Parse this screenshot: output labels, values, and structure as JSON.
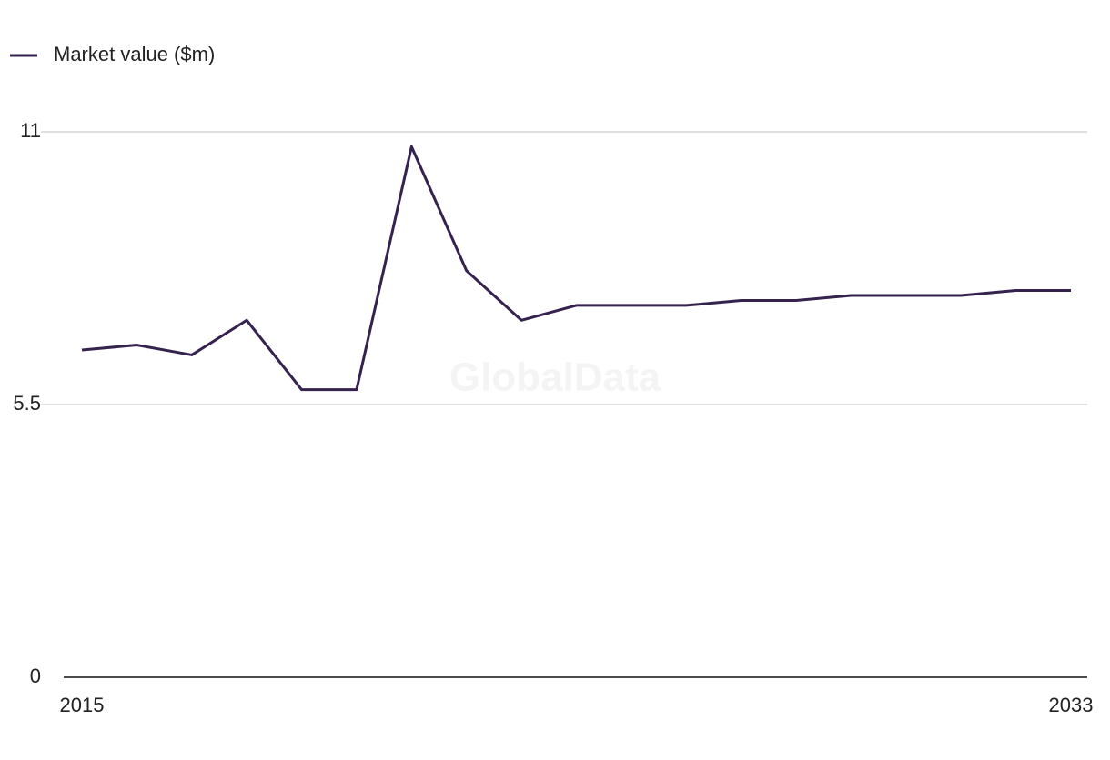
{
  "chart_data": {
    "type": "line",
    "watermark": "GlobalData",
    "x": [
      2015,
      2016,
      2017,
      2018,
      2019,
      2020,
      2021,
      2022,
      2023,
      2024,
      2025,
      2026,
      2027,
      2028,
      2029,
      2030,
      2031,
      2032,
      2033
    ],
    "series": [
      {
        "name": "Market value ($m)",
        "color": "#35224f",
        "values": [
          6.6,
          6.7,
          6.5,
          7.2,
          5.8,
          5.8,
          10.7,
          8.2,
          7.2,
          7.5,
          7.5,
          7.5,
          7.6,
          7.6,
          7.7,
          7.7,
          7.7,
          7.8,
          7.8
        ]
      }
    ],
    "xlim": [
      2015,
      2033
    ],
    "xticks": [
      2015,
      2033
    ],
    "ylim": [
      0,
      11
    ],
    "yticks": [
      0,
      5.5,
      11
    ],
    "grid": true,
    "legend": "top-left"
  }
}
